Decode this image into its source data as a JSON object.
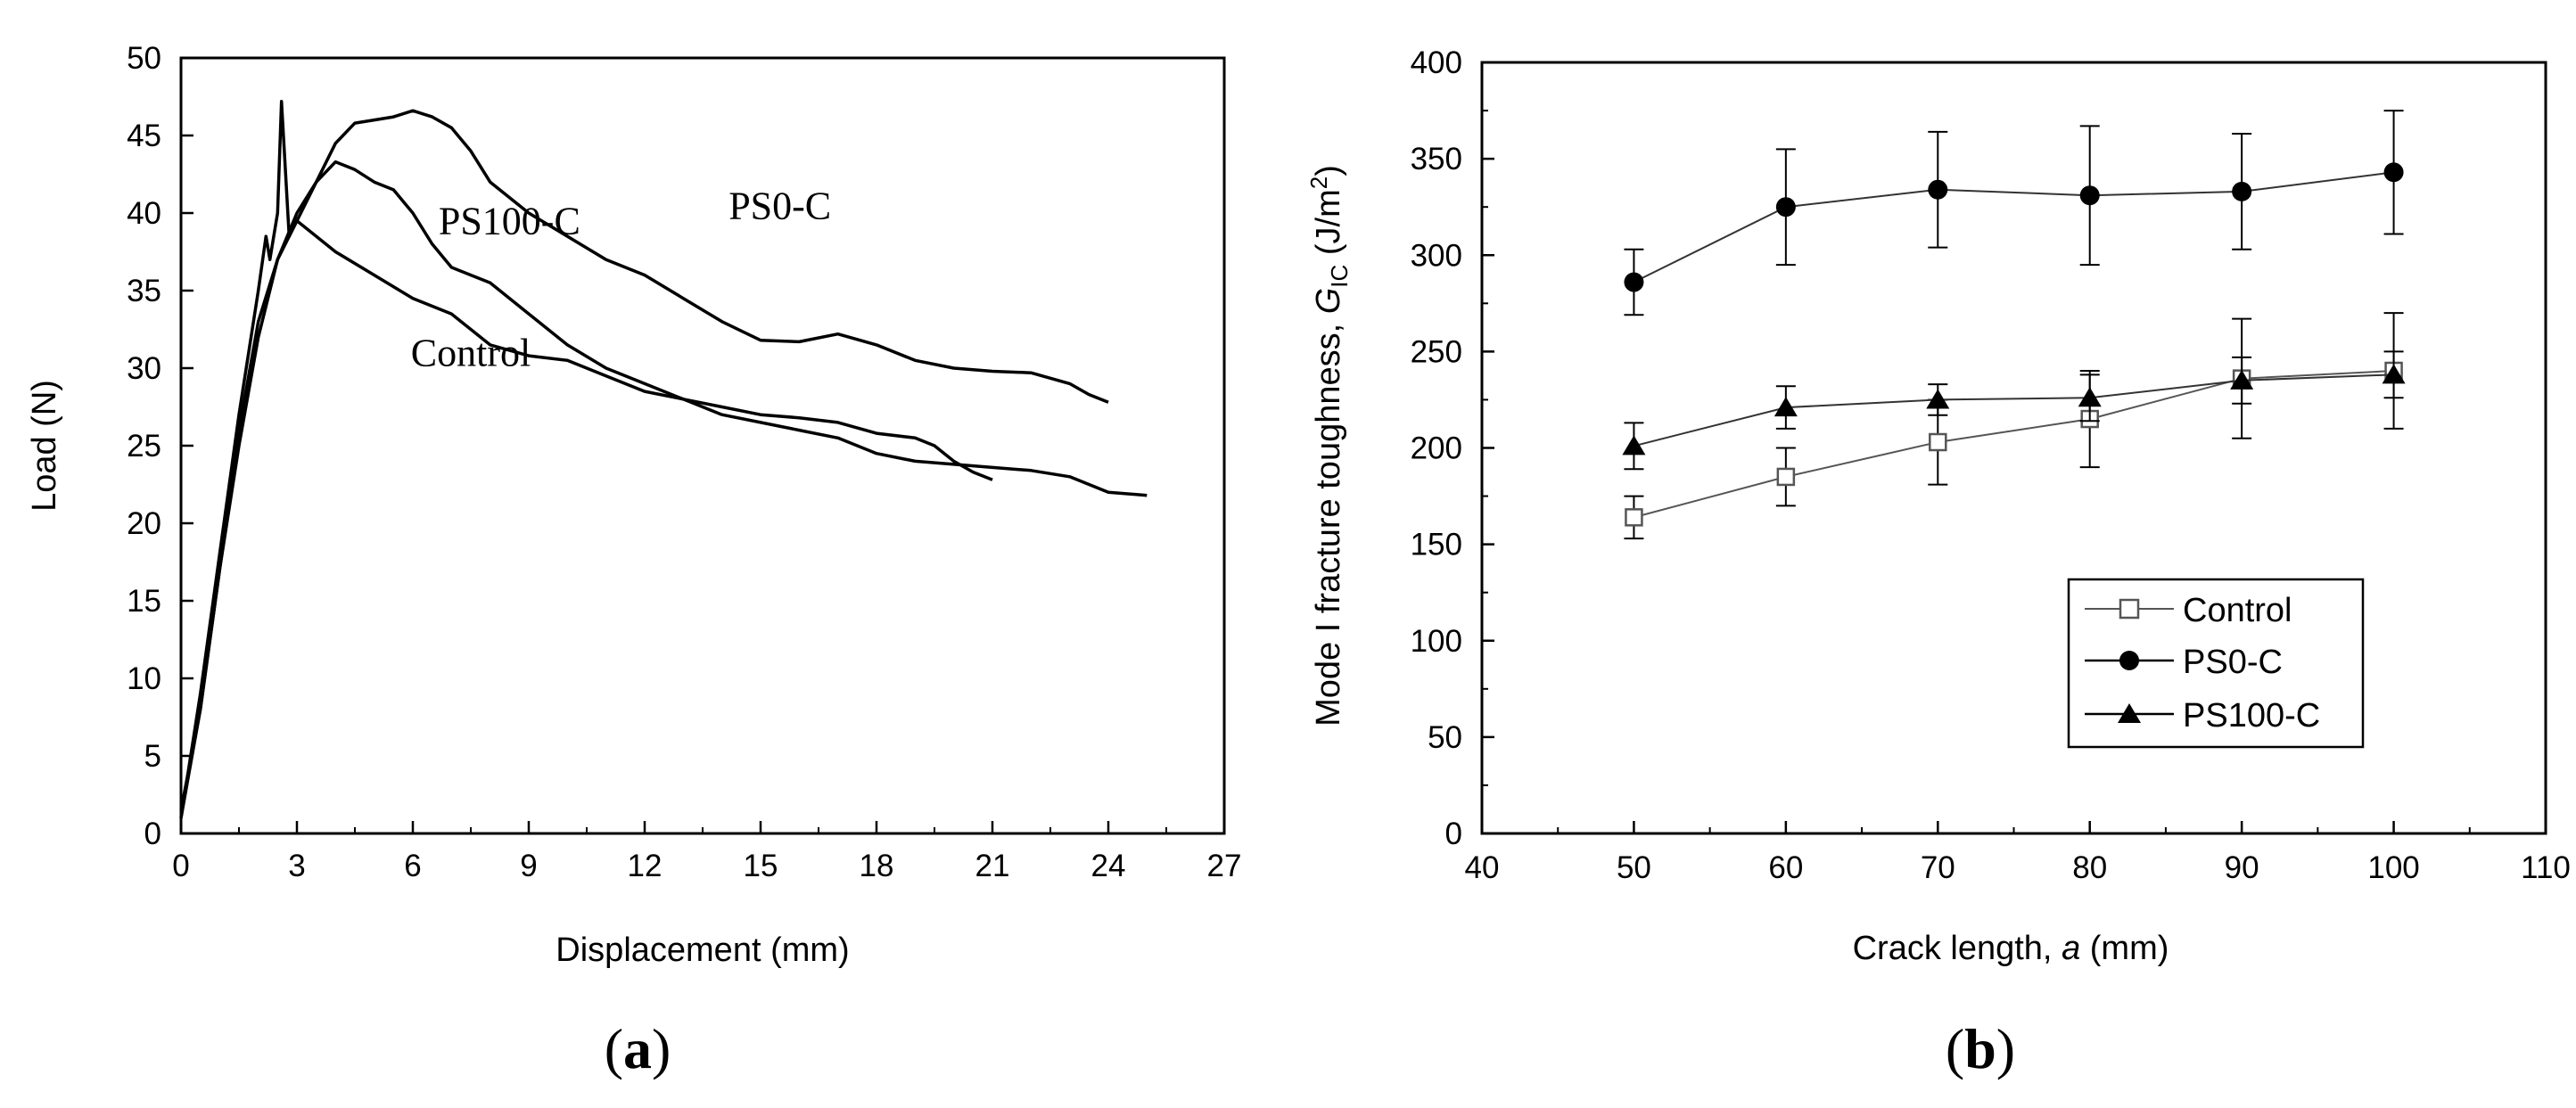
{
  "chart_data": [
    {
      "type": "line",
      "panel_label": "a",
      "title": "",
      "xlabel": "Displacement (mm)",
      "ylabel": "Load (N)",
      "xlim": [
        0,
        27
      ],
      "ylim": [
        0,
        50
      ],
      "xticks": [
        0,
        3,
        6,
        9,
        12,
        15,
        18,
        21,
        24,
        27
      ],
      "yticks": [
        0,
        5,
        10,
        15,
        20,
        25,
        30,
        35,
        40,
        45,
        50
      ],
      "grid": false,
      "series": [
        {
          "name": "PS0-C",
          "points": [
            [
              0,
              1.5
            ],
            [
              0.5,
              8
            ],
            [
              1,
              17
            ],
            [
              1.5,
              26
            ],
            [
              2,
              33
            ],
            [
              2.5,
              37
            ],
            [
              3,
              39.5
            ],
            [
              3.5,
              42
            ],
            [
              4,
              44.5
            ],
            [
              4.5,
              45.8
            ],
            [
              5,
              46
            ],
            [
              5.5,
              46.2
            ],
            [
              6,
              46.6
            ],
            [
              6.5,
              46.2
            ],
            [
              7,
              45.5
            ],
            [
              7.5,
              44
            ],
            [
              8,
              42
            ],
            [
              9,
              40
            ],
            [
              10,
              38.5
            ],
            [
              11,
              37
            ],
            [
              12,
              36
            ],
            [
              13,
              34.5
            ],
            [
              14,
              33
            ],
            [
              15,
              31.8
            ],
            [
              16,
              31.7
            ],
            [
              17,
              32.2
            ],
            [
              18,
              31.5
            ],
            [
              19,
              30.5
            ],
            [
              20,
              30
            ],
            [
              21,
              29.8
            ],
            [
              22,
              29.7
            ],
            [
              23,
              29
            ],
            [
              23.5,
              28.3
            ],
            [
              24,
              27.8
            ]
          ]
        },
        {
          "name": "PS100-C",
          "points": [
            [
              0,
              1
            ],
            [
              0.5,
              8
            ],
            [
              1,
              17
            ],
            [
              1.5,
              25
            ],
            [
              2,
              32
            ],
            [
              2.5,
              37
            ],
            [
              3,
              40
            ],
            [
              3.5,
              42
            ],
            [
              4,
              43.3
            ],
            [
              4.5,
              42.8
            ],
            [
              5,
              42
            ],
            [
              5.5,
              41.5
            ],
            [
              6,
              40
            ],
            [
              6.5,
              38
            ],
            [
              7,
              36.5
            ],
            [
              8,
              35.5
            ],
            [
              9,
              33.5
            ],
            [
              10,
              31.5
            ],
            [
              11,
              30
            ],
            [
              12,
              29
            ],
            [
              13,
              28
            ],
            [
              14,
              27.5
            ],
            [
              15,
              27
            ],
            [
              16,
              26.8
            ],
            [
              17,
              26.5
            ],
            [
              18,
              25.8
            ],
            [
              19,
              25.5
            ],
            [
              19.5,
              25
            ],
            [
              20,
              24
            ],
            [
              20.5,
              23.3
            ],
            [
              21,
              22.8
            ]
          ]
        },
        {
          "name": "Control",
          "points": [
            [
              0,
              1
            ],
            [
              0.5,
              9
            ],
            [
              1,
              18
            ],
            [
              1.5,
              27
            ],
            [
              2,
              35
            ],
            [
              2.2,
              38.5
            ],
            [
              2.3,
              37
            ],
            [
              2.5,
              40
            ],
            [
              2.6,
              47.2
            ],
            [
              2.8,
              38.5
            ],
            [
              3,
              39.5
            ],
            [
              4,
              37.5
            ],
            [
              5,
              36
            ],
            [
              6,
              34.5
            ],
            [
              7,
              33.5
            ],
            [
              8,
              31.5
            ],
            [
              9,
              30.8
            ],
            [
              10,
              30.5
            ],
            [
              11,
              29.5
            ],
            [
              12,
              28.5
            ],
            [
              13,
              28
            ],
            [
              14,
              27
            ],
            [
              15,
              26.5
            ],
            [
              16,
              26
            ],
            [
              17,
              25.5
            ],
            [
              18,
              24.5
            ],
            [
              19,
              24
            ],
            [
              20,
              23.8
            ],
            [
              21,
              23.6
            ],
            [
              22,
              23.4
            ],
            [
              23,
              23
            ],
            [
              24,
              22
            ],
            [
              25,
              21.8
            ]
          ]
        }
      ],
      "annotations": [
        {
          "text": "PS0-C",
          "x": 15.5,
          "y": 40.5
        },
        {
          "text": "PS100-C",
          "x": 8.5,
          "y": 39.5
        },
        {
          "text": "Control",
          "x": 7.5,
          "y": 31
        }
      ]
    },
    {
      "type": "scatter",
      "panel_label": "b",
      "title": "",
      "xlabel": "Crack length, a (mm)",
      "xlabel_parts": {
        "prefix": "Crack length, ",
        "variable": "a",
        "suffix": " (mm)"
      },
      "ylabel": "Mode I fracture toughness, GIC (J/m2)",
      "ylabel_parts": {
        "prefix": "Mode I fracture toughness, ",
        "variable": "G",
        "subscript": "IC",
        "unit_open": " (J/m",
        "superscript": "2",
        "unit_close": ")"
      },
      "xlim": [
        40,
        110
      ],
      "ylim": [
        0,
        400
      ],
      "xticks": [
        40,
        50,
        60,
        70,
        80,
        90,
        100,
        110
      ],
      "yticks": [
        0,
        50,
        100,
        150,
        200,
        250,
        300,
        350,
        400
      ],
      "grid": false,
      "legend_position": "bottom-right",
      "x": [
        50,
        60,
        70,
        80,
        90,
        100
      ],
      "series": [
        {
          "name": "Control",
          "marker": "open-square",
          "values": [
            164,
            185,
            203,
            215,
            236,
            240
          ],
          "errors": [
            11,
            15,
            22,
            25,
            31,
            30
          ]
        },
        {
          "name": "PS0-C",
          "marker": "filled-circle",
          "values": [
            286,
            325,
            334,
            331,
            333,
            343
          ],
          "errors": [
            17,
            30,
            30,
            36,
            30,
            32
          ]
        },
        {
          "name": "PS100-C",
          "marker": "filled-triangle",
          "values": [
            201,
            221,
            225,
            226,
            235,
            238
          ],
          "errors": [
            12,
            11,
            8,
            12,
            12,
            12
          ]
        }
      ]
    }
  ]
}
